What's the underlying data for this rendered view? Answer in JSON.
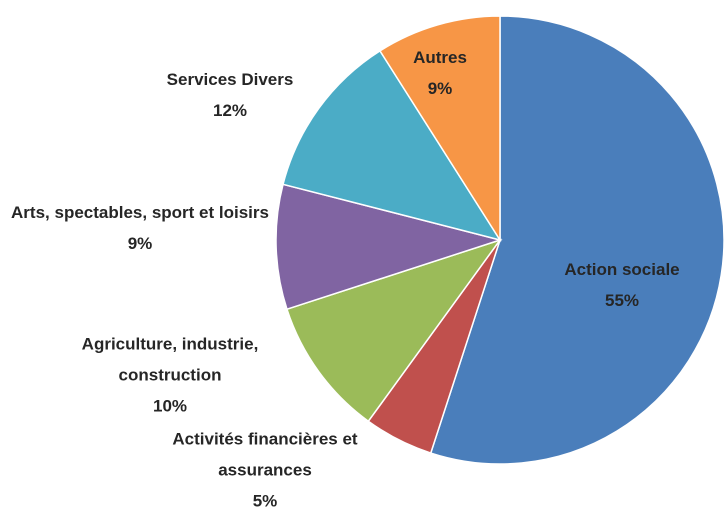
{
  "chart_data": {
    "type": "pie",
    "categories": [
      "Action sociale",
      "Activités financières et assurances",
      "Agriculture, industrie, construction",
      "Arts, spectables, sport et loisirs",
      "Services Divers",
      "Autres"
    ],
    "values": [
      55,
      5,
      10,
      9,
      12,
      9
    ],
    "value_labels": [
      "55%",
      "5%",
      "10%",
      "9%",
      "12%",
      "9%"
    ],
    "colors": [
      "#4a7ebb",
      "#c0504d",
      "#9bbb59",
      "#8064a2",
      "#4bacc6",
      "#f79646"
    ]
  }
}
